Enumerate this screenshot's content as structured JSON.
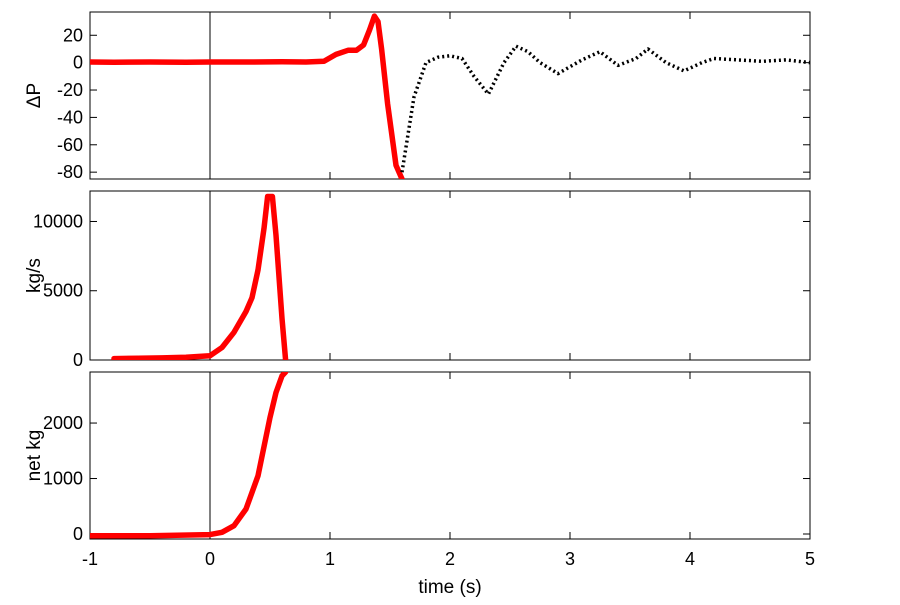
{
  "figure": {
    "xlabel": "time (s)",
    "xlim": [
      -1,
      5
    ],
    "xticks": [
      -1,
      0,
      1,
      2,
      3,
      4,
      5
    ]
  },
  "chart_data": [
    {
      "type": "line",
      "title": "",
      "xlabel": "",
      "ylabel": "ΔP",
      "ylim": [
        -85,
        37
      ],
      "yticks": [
        20,
        0,
        -20,
        -40,
        -60,
        -80
      ],
      "grid": false,
      "vertical_marker_x": 0,
      "series": [
        {
          "color": "#ff0000",
          "style": "solid",
          "x": [
            -1,
            -0.8,
            -0.5,
            -0.2,
            0,
            0.3,
            0.6,
            0.8,
            0.95,
            1.05,
            1.15,
            1.22,
            1.28,
            1.33,
            1.37,
            1.4,
            1.43,
            1.48,
            1.55,
            1.6
          ],
          "y": [
            0.5,
            0.3,
            0.5,
            0.3,
            0.5,
            0.5,
            0.6,
            0.5,
            1,
            6,
            9,
            9,
            13,
            24,
            34,
            30,
            10,
            -30,
            -75,
            -85
          ]
        },
        {
          "color": "#000000",
          "style": "dotted",
          "x": [
            1.6,
            1.7,
            1.8,
            1.9,
            2.0,
            2.1,
            2.2,
            2.32,
            2.45,
            2.55,
            2.65,
            2.75,
            2.9,
            3.1,
            3.25,
            3.4,
            3.55,
            3.65,
            3.8,
            3.95,
            4.1,
            4.2,
            4.4,
            4.6,
            4.8,
            5.0
          ],
          "y": [
            -80,
            -25,
            0,
            4,
            5,
            3,
            -10,
            -23,
            0,
            12,
            8,
            0,
            -8,
            2,
            8,
            -2,
            3,
            10,
            0,
            -6,
            0,
            3,
            2,
            1,
            2,
            0
          ]
        }
      ]
    },
    {
      "type": "line",
      "title": "",
      "xlabel": "",
      "ylabel": "kg/s",
      "ylim": [
        0,
        12200
      ],
      "yticks": [
        0,
        5000,
        10000
      ],
      "grid": false,
      "vertical_marker_x": 0,
      "series": [
        {
          "color": "#ff0000",
          "style": "solid",
          "x": [
            -0.8,
            -0.6,
            -0.4,
            -0.2,
            0,
            0.1,
            0.2,
            0.3,
            0.35,
            0.4,
            0.45,
            0.48,
            0.52,
            0.55,
            0.6,
            0.63
          ],
          "y": [
            100,
            120,
            150,
            200,
            300,
            900,
            2000,
            3500,
            4500,
            6500,
            9500,
            11800,
            11800,
            9000,
            3000,
            0
          ]
        }
      ]
    },
    {
      "type": "line",
      "title": "",
      "xlabel": "",
      "ylabel": "net kg",
      "ylim": [
        -90,
        2920
      ],
      "yticks": [
        0,
        1000,
        2000
      ],
      "grid": false,
      "vertical_marker_x": 0,
      "series": [
        {
          "color": "#ff0000",
          "style": "solid",
          "x": [
            -1,
            -0.5,
            0,
            0.1,
            0.2,
            0.3,
            0.4,
            0.5,
            0.55,
            0.6,
            0.63
          ],
          "y": [
            -30,
            -30,
            -10,
            30,
            150,
            450,
            1050,
            2100,
            2550,
            2850,
            2920
          ]
        }
      ]
    }
  ]
}
